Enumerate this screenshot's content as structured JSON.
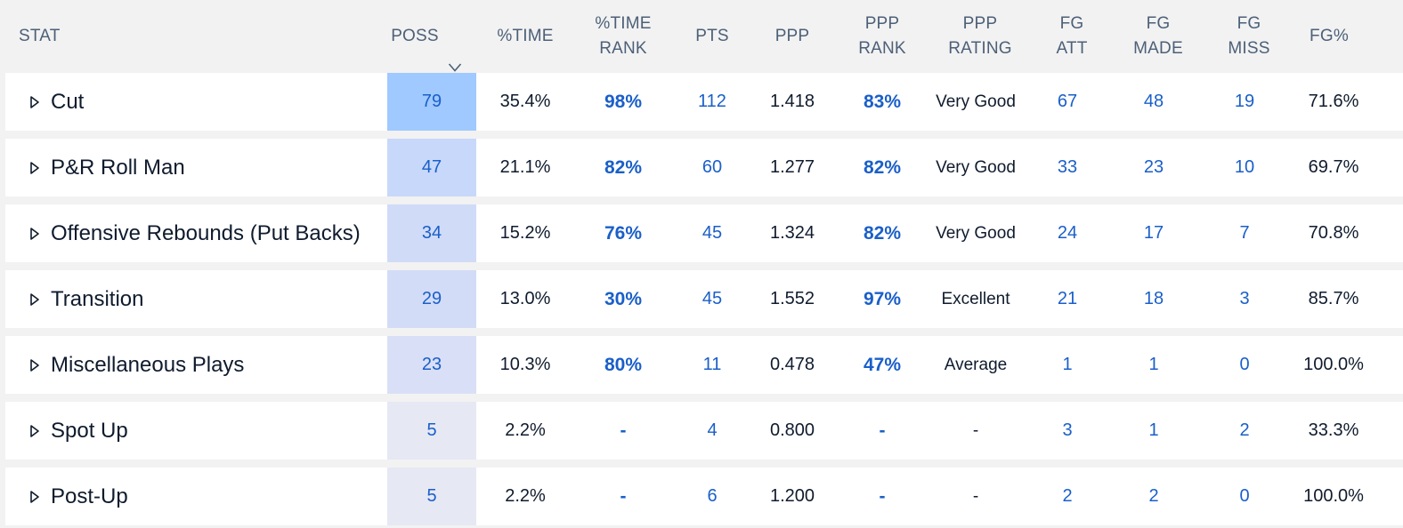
{
  "header": {
    "stat": "STAT",
    "poss": "POSS",
    "pct_time": "%TIME",
    "pct_time_rank": "%TIME\nRANK",
    "pts": "PTS",
    "ppp": "PPP",
    "ppp_rank": "PPP\nRANK",
    "ppp_rating": "PPP\nRATING",
    "fg_att": "FG\nATT",
    "fg_made": "FG\nMADE",
    "fg_miss": "FG\nMISS",
    "fg_pct": "FG%"
  },
  "icons": {
    "sort": "sort-descending-icon",
    "expand": "expand-triangle-icon"
  },
  "colors": {
    "poss_shades": [
      "#9fc9ff",
      "#c7d8fb",
      "#d0dbf8",
      "#d3dcf7",
      "#d9dff6",
      "#e6e8f4",
      "#e6e8f4"
    ],
    "link": "#1a5fc9"
  },
  "rows": [
    {
      "name": "Cut",
      "poss": "79",
      "pct_time": "35.4%",
      "pct_time_rank": "98%",
      "pts": "112",
      "ppp": "1.418",
      "ppp_rank": "83%",
      "ppp_rating": "Very Good",
      "fg_att": "67",
      "fg_made": "48",
      "fg_miss": "19",
      "fg_pct": "71.6%"
    },
    {
      "name": "P&R Roll Man",
      "poss": "47",
      "pct_time": "21.1%",
      "pct_time_rank": "82%",
      "pts": "60",
      "ppp": "1.277",
      "ppp_rank": "82%",
      "ppp_rating": "Very Good",
      "fg_att": "33",
      "fg_made": "23",
      "fg_miss": "10",
      "fg_pct": "69.7%"
    },
    {
      "name": "Offensive Rebounds (Put Backs)",
      "poss": "34",
      "pct_time": "15.2%",
      "pct_time_rank": "76%",
      "pts": "45",
      "ppp": "1.324",
      "ppp_rank": "82%",
      "ppp_rating": "Very Good",
      "fg_att": "24",
      "fg_made": "17",
      "fg_miss": "7",
      "fg_pct": "70.8%"
    },
    {
      "name": "Transition",
      "poss": "29",
      "pct_time": "13.0%",
      "pct_time_rank": "30%",
      "pts": "45",
      "ppp": "1.552",
      "ppp_rank": "97%",
      "ppp_rating": "Excellent",
      "fg_att": "21",
      "fg_made": "18",
      "fg_miss": "3",
      "fg_pct": "85.7%"
    },
    {
      "name": "Miscellaneous Plays",
      "poss": "23",
      "pct_time": "10.3%",
      "pct_time_rank": "80%",
      "pts": "11",
      "ppp": "0.478",
      "ppp_rank": "47%",
      "ppp_rating": "Average",
      "fg_att": "1",
      "fg_made": "1",
      "fg_miss": "0",
      "fg_pct": "100.0%"
    },
    {
      "name": "Spot Up",
      "poss": "5",
      "pct_time": "2.2%",
      "pct_time_rank": "-",
      "pts": "4",
      "ppp": "0.800",
      "ppp_rank": "-",
      "ppp_rating": "-",
      "fg_att": "3",
      "fg_made": "1",
      "fg_miss": "2",
      "fg_pct": "33.3%"
    },
    {
      "name": "Post-Up",
      "poss": "5",
      "pct_time": "2.2%",
      "pct_time_rank": "-",
      "pts": "6",
      "ppp": "1.200",
      "ppp_rank": "-",
      "ppp_rating": "-",
      "fg_att": "2",
      "fg_made": "2",
      "fg_miss": "0",
      "fg_pct": "100.0%"
    }
  ]
}
